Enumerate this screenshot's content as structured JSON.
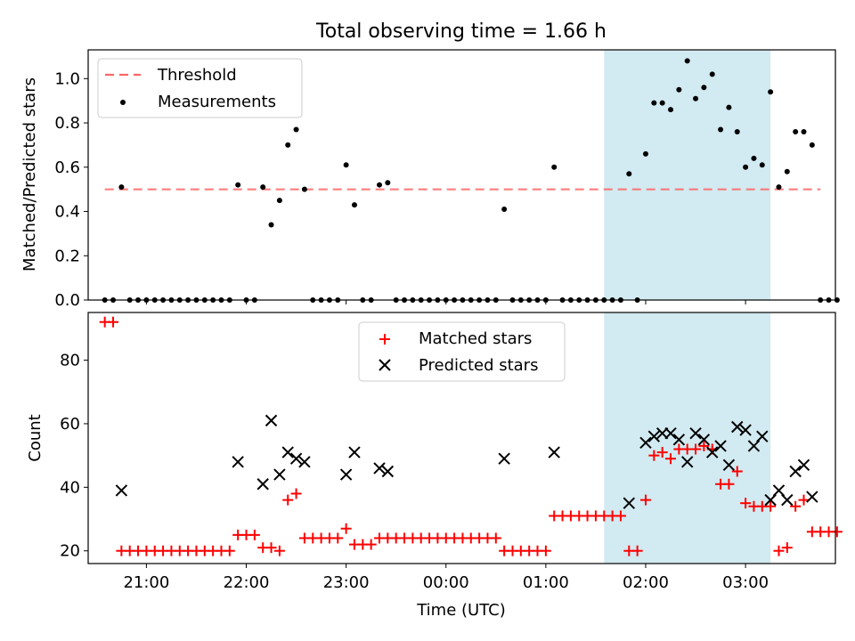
{
  "chart_data": [
    {
      "type": "scatter",
      "title": "Total observing time = 1.66 h",
      "xlabel": "",
      "ylabel": "Matched/Predicted stars",
      "xlim": [
        "20:25",
        "03:54"
      ],
      "ylim": [
        0,
        1.13
      ],
      "yticks": [
        "0.0",
        "0.2",
        "0.4",
        "0.6",
        "0.8",
        "1.0"
      ],
      "legend_position": "top-left",
      "highlight_span": {
        "from": "01:35",
        "to": "03:15",
        "color": "#add8e6"
      },
      "threshold": {
        "name": "Threshold",
        "value": 0.5,
        "from": "20:35",
        "to": "03:45",
        "color": "#ff6666"
      },
      "series": [
        {
          "name": "Measurements",
          "color": "#000000",
          "points": [
            [
              "20:35",
              0
            ],
            [
              "20:40",
              0
            ],
            [
              "20:45",
              0.51
            ],
            [
              "20:50",
              0
            ],
            [
              "20:55",
              0
            ],
            [
              "21:00",
              0
            ],
            [
              "21:05",
              0
            ],
            [
              "21:10",
              0
            ],
            [
              "21:15",
              0
            ],
            [
              "21:20",
              0
            ],
            [
              "21:25",
              0
            ],
            [
              "21:30",
              0
            ],
            [
              "21:35",
              0
            ],
            [
              "21:40",
              0
            ],
            [
              "21:45",
              0
            ],
            [
              "21:50",
              0
            ],
            [
              "21:55",
              0.52
            ],
            [
              "22:00",
              0
            ],
            [
              "22:05",
              0
            ],
            [
              "22:10",
              0.51
            ],
            [
              "22:15",
              0.34
            ],
            [
              "22:20",
              0.45
            ],
            [
              "22:25",
              0.7
            ],
            [
              "22:30",
              0.77
            ],
            [
              "22:35",
              0.5
            ],
            [
              "22:40",
              0
            ],
            [
              "22:45",
              0
            ],
            [
              "22:50",
              0
            ],
            [
              "22:55",
              0
            ],
            [
              "23:00",
              0.61
            ],
            [
              "23:05",
              0.43
            ],
            [
              "23:10",
              0
            ],
            [
              "23:15",
              0
            ],
            [
              "23:20",
              0.52
            ],
            [
              "23:25",
              0.53
            ],
            [
              "23:30",
              0
            ],
            [
              "23:35",
              0
            ],
            [
              "23:40",
              0
            ],
            [
              "23:45",
              0
            ],
            [
              "23:50",
              0
            ],
            [
              "23:55",
              0
            ],
            [
              "00:00",
              0
            ],
            [
              "00:05",
              0
            ],
            [
              "00:10",
              0
            ],
            [
              "00:15",
              0
            ],
            [
              "00:20",
              0
            ],
            [
              "00:25",
              0
            ],
            [
              "00:30",
              0
            ],
            [
              "00:35",
              0.41
            ],
            [
              "00:40",
              0
            ],
            [
              "00:45",
              0
            ],
            [
              "00:50",
              0
            ],
            [
              "00:55",
              0
            ],
            [
              "01:00",
              0
            ],
            [
              "01:05",
              0.6
            ],
            [
              "01:10",
              0
            ],
            [
              "01:15",
              0
            ],
            [
              "01:20",
              0
            ],
            [
              "01:25",
              0
            ],
            [
              "01:30",
              0
            ],
            [
              "01:35",
              0
            ],
            [
              "01:40",
              0
            ],
            [
              "01:45",
              0
            ],
            [
              "01:50",
              0.57
            ],
            [
              "01:55",
              0
            ],
            [
              "02:00",
              0.66
            ],
            [
              "02:05",
              0.89
            ],
            [
              "02:10",
              0.89
            ],
            [
              "02:15",
              0.86
            ],
            [
              "02:20",
              0.95
            ],
            [
              "02:25",
              1.08
            ],
            [
              "02:30",
              0.91
            ],
            [
              "02:35",
              0.96
            ],
            [
              "02:40",
              1.02
            ],
            [
              "02:45",
              0.77
            ],
            [
              "02:50",
              0.87
            ],
            [
              "02:55",
              0.76
            ],
            [
              "03:00",
              0.6
            ],
            [
              "03:05",
              0.64
            ],
            [
              "03:10",
              0.61
            ],
            [
              "03:15",
              0.94
            ],
            [
              "03:20",
              0.51
            ],
            [
              "03:25",
              0.58
            ],
            [
              "03:30",
              0.76
            ],
            [
              "03:35",
              0.76
            ],
            [
              "03:40",
              0.7
            ],
            [
              "03:45",
              0
            ],
            [
              "03:50",
              0
            ],
            [
              "03:55",
              0
            ]
          ]
        }
      ]
    },
    {
      "type": "scatter",
      "title": "",
      "xlabel": "Time (UTC)",
      "ylabel": "Count",
      "xlim": [
        "20:25",
        "03:54"
      ],
      "ylim": [
        16,
        95
      ],
      "xticks": [
        "21:00",
        "22:00",
        "23:00",
        "00:00",
        "01:00",
        "02:00",
        "03:00"
      ],
      "yticks": [
        "20",
        "40",
        "60",
        "80"
      ],
      "legend_position": "top-center",
      "highlight_span": {
        "from": "01:35",
        "to": "03:15",
        "color": "#add8e6"
      },
      "series": [
        {
          "name": "Matched stars",
          "marker": "+",
          "color": "#ff0000",
          "points": [
            [
              "20:35",
              92
            ],
            [
              "20:40",
              92
            ],
            [
              "20:45",
              20
            ],
            [
              "20:50",
              20
            ],
            [
              "20:55",
              20
            ],
            [
              "21:00",
              20
            ],
            [
              "21:05",
              20
            ],
            [
              "21:10",
              20
            ],
            [
              "21:15",
              20
            ],
            [
              "21:20",
              20
            ],
            [
              "21:25",
              20
            ],
            [
              "21:30",
              20
            ],
            [
              "21:35",
              20
            ],
            [
              "21:40",
              20
            ],
            [
              "21:45",
              20
            ],
            [
              "21:50",
              20
            ],
            [
              "21:55",
              25
            ],
            [
              "22:00",
              25
            ],
            [
              "22:05",
              25
            ],
            [
              "22:10",
              21
            ],
            [
              "22:15",
              21
            ],
            [
              "22:20",
              20
            ],
            [
              "22:25",
              36
            ],
            [
              "22:30",
              38
            ],
            [
              "22:35",
              24
            ],
            [
              "22:40",
              24
            ],
            [
              "22:45",
              24
            ],
            [
              "22:50",
              24
            ],
            [
              "22:55",
              24
            ],
            [
              "23:00",
              27
            ],
            [
              "23:05",
              22
            ],
            [
              "23:10",
              22
            ],
            [
              "23:15",
              22
            ],
            [
              "23:20",
              24
            ],
            [
              "23:25",
              24
            ],
            [
              "23:30",
              24
            ],
            [
              "23:35",
              24
            ],
            [
              "23:40",
              24
            ],
            [
              "23:45",
              24
            ],
            [
              "23:50",
              24
            ],
            [
              "23:55",
              24
            ],
            [
              "00:00",
              24
            ],
            [
              "00:05",
              24
            ],
            [
              "00:10",
              24
            ],
            [
              "00:15",
              24
            ],
            [
              "00:20",
              24
            ],
            [
              "00:25",
              24
            ],
            [
              "00:30",
              24
            ],
            [
              "00:35",
              20
            ],
            [
              "00:40",
              20
            ],
            [
              "00:45",
              20
            ],
            [
              "00:50",
              20
            ],
            [
              "00:55",
              20
            ],
            [
              "01:00",
              20
            ],
            [
              "01:05",
              31
            ],
            [
              "01:10",
              31
            ],
            [
              "01:15",
              31
            ],
            [
              "01:20",
              31
            ],
            [
              "01:25",
              31
            ],
            [
              "01:30",
              31
            ],
            [
              "01:35",
              31
            ],
            [
              "01:40",
              31
            ],
            [
              "01:45",
              31
            ],
            [
              "01:50",
              20
            ],
            [
              "01:55",
              20
            ],
            [
              "02:00",
              36
            ],
            [
              "02:05",
              50
            ],
            [
              "02:10",
              51
            ],
            [
              "02:15",
              49
            ],
            [
              "02:20",
              52
            ],
            [
              "02:25",
              52
            ],
            [
              "02:30",
              52
            ],
            [
              "02:35",
              53
            ],
            [
              "02:40",
              52
            ],
            [
              "02:45",
              41
            ],
            [
              "02:50",
              41
            ],
            [
              "02:55",
              45
            ],
            [
              "03:00",
              35
            ],
            [
              "03:05",
              34
            ],
            [
              "03:10",
              34
            ],
            [
              "03:15",
              34
            ],
            [
              "03:20",
              20
            ],
            [
              "03:25",
              21
            ],
            [
              "03:30",
              34
            ],
            [
              "03:35",
              36
            ],
            [
              "03:40",
              26
            ],
            [
              "03:45",
              26
            ],
            [
              "03:50",
              26
            ],
            [
              "03:55",
              26
            ]
          ]
        },
        {
          "name": "Predicted stars",
          "marker": "x",
          "color": "#000000",
          "points": [
            [
              "20:45",
              39
            ],
            [
              "21:55",
              48
            ],
            [
              "22:10",
              41
            ],
            [
              "22:15",
              61
            ],
            [
              "22:20",
              44
            ],
            [
              "22:25",
              51
            ],
            [
              "22:30",
              49
            ],
            [
              "22:35",
              48
            ],
            [
              "23:00",
              44
            ],
            [
              "23:05",
              51
            ],
            [
              "23:20",
              46
            ],
            [
              "23:25",
              45
            ],
            [
              "00:35",
              49
            ],
            [
              "01:05",
              51
            ],
            [
              "01:50",
              35
            ],
            [
              "02:00",
              54
            ],
            [
              "02:05",
              56
            ],
            [
              "02:10",
              57
            ],
            [
              "02:15",
              57
            ],
            [
              "02:20",
              55
            ],
            [
              "02:25",
              48
            ],
            [
              "02:30",
              57
            ],
            [
              "02:35",
              55
            ],
            [
              "02:40",
              51
            ],
            [
              "02:45",
              53
            ],
            [
              "02:50",
              47
            ],
            [
              "02:55",
              59
            ],
            [
              "03:00",
              58
            ],
            [
              "03:05",
              53
            ],
            [
              "03:10",
              56
            ],
            [
              "03:15",
              36
            ],
            [
              "03:20",
              39
            ],
            [
              "03:25",
              36
            ],
            [
              "03:30",
              45
            ],
            [
              "03:35",
              47
            ],
            [
              "03:40",
              37
            ]
          ]
        }
      ]
    }
  ]
}
